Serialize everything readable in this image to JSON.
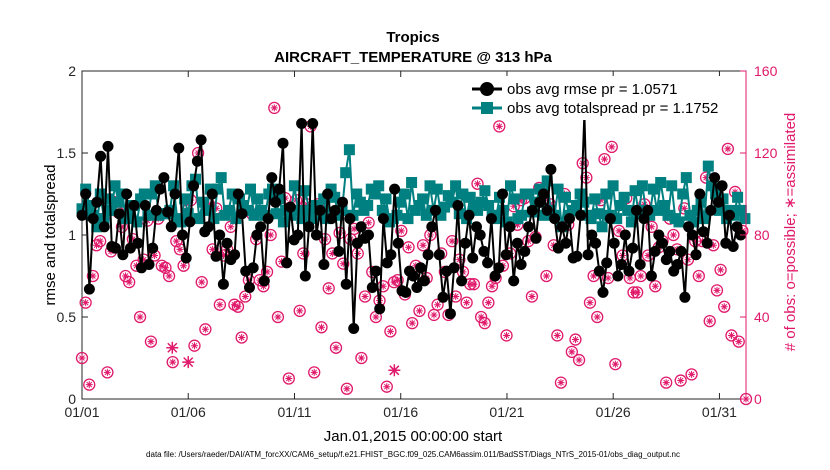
{
  "chart_data": {
    "type": "line",
    "title": "Tropics",
    "subtitle": "AIRCRAFT_TEMPERATURE @ 313 hPa",
    "xlabel": "Jan.01,2015 00:00:00 start",
    "ylabel_left": "rmse and totalspread",
    "ylabel_right": "# of obs: o=possible; ∗=assimilated",
    "x_range_days": [
      0,
      31.25
    ],
    "ylim_left": [
      0,
      2
    ],
    "ylim_right": [
      0,
      160
    ],
    "x_ticks": [
      {
        "day": 0,
        "label": "01/01"
      },
      {
        "day": 5,
        "label": "01/06"
      },
      {
        "day": 10,
        "label": "01/11"
      },
      {
        "day": 15,
        "label": "01/16"
      },
      {
        "day": 20,
        "label": "01/21"
      },
      {
        "day": 25,
        "label": "01/26"
      },
      {
        "day": 30,
        "label": "01/31"
      }
    ],
    "y_ticks_left": [
      {
        "value": 0,
        "label": "0"
      },
      {
        "value": 0.5,
        "label": "0.5"
      },
      {
        "value": 1,
        "label": "1"
      },
      {
        "value": 1.5,
        "label": "1.5"
      },
      {
        "value": 2,
        "label": "2"
      }
    ],
    "y_ticks_right": [
      {
        "value": 0,
        "label": "0"
      },
      {
        "value": 40,
        "label": "40"
      },
      {
        "value": 80,
        "label": "80"
      },
      {
        "value": 120,
        "label": "120"
      },
      {
        "value": 160,
        "label": "160"
      }
    ],
    "legend": {
      "location": "top-right",
      "entries": [
        "obs avg rmse pr = 1.0571",
        "obs avg totalspread pr = 1.1752"
      ]
    },
    "time_step_days": 0.125,
    "series": [
      {
        "name": "obs avg rmse pr = 1.0571",
        "axis": "left",
        "color": "#000000",
        "marker": "circle",
        "values": [
          1.12,
          1.25,
          0.67,
          1.1,
          1.2,
          1.48,
          1.05,
          1.54,
          0.93,
          0.92,
          1.13,
          0.88,
          1.25,
          0.92,
          1.18,
          0.95,
          0.8,
          1.18,
          0.82,
          0.92,
          1.15,
          1.28,
          1.35,
          1.14,
          1.05,
          1.25,
          1.53,
          1.0,
          0.86,
          1.08,
          1.3,
          1.45,
          1.58,
          1.02,
          1.05,
          1.25,
          0.87,
          1.0,
          0.7,
          0.95,
          0.85,
          0.88,
          1.25,
          1.13,
          0.78,
          0.68,
          0.8,
          1.0,
          1.05,
          0.72,
          1.1,
          1.35,
          1.2,
          1.28,
          1.56,
          0.83,
          1.17,
          0.97,
          1.0,
          1.68,
          0.75,
          1.05,
          1.68,
          1.0,
          1.15,
          0.82,
          1.25,
          1.1,
          1.15,
          0.9,
          1.2,
          0.7,
          1.1,
          0.43,
          0.95,
          1.05,
          0.98,
          1.0,
          0.68,
          0.78,
          0.55,
          1.1,
          0.83,
          0.88,
          1.28,
          0.95,
          0.66,
          0.65,
          0.78,
          0.75,
          0.68,
          0.8,
          0.72,
          0.88,
          1.05,
          1.15,
          0.88,
          0.62,
          0.78,
          0.52,
          0.8,
          1.18,
          0.72,
          0.95,
          1.12,
          0.86,
          1.05,
          1.0,
          0.9,
          0.83,
          1.1,
          0.75,
          0.8,
          1.25,
          0.88,
          1.05,
          0.72,
          0.95,
          0.82,
          0.9,
          1.05,
          1.15,
          0.98,
          1.2,
          1.25,
          1.15,
          1.4,
          1.1,
          0.92,
          1.05,
          0.95,
          1.1,
          0.86,
          0.87,
          1.12,
          1.74,
          0.88,
          1.0,
          0.95,
          0.78,
          0.65,
          0.83,
          1.1,
          0.95,
          0.75,
          0.82,
          1.0,
          0.78,
          0.92,
          1.15,
          0.82,
          1.1,
          1.15,
          0.75,
          0.9,
          1.0,
          0.95,
          0.85,
          0.9,
          0.78,
          0.82,
          0.9,
          0.62,
          1.05,
          1.0,
          0.88,
          1.25,
          1.02,
          0.95,
          1.15,
          1.35,
          1.2,
          1.3,
          0.95,
          1.12,
          0.93,
          1.05,
          1.0
        ],
        "end_day": 31.0
      },
      {
        "name": "obs avg totalspread pr = 1.1752",
        "axis": "left",
        "color": "#008080",
        "marker": "square",
        "values": [
          1.16,
          1.28,
          1.18,
          1.12,
          1.05,
          1.25,
          1.1,
          1.22,
          1.15,
          1.3,
          1.2,
          1.25,
          1.1,
          1.14,
          1.18,
          1.08,
          1.22,
          1.25,
          1.12,
          1.25,
          1.3,
          1.12,
          1.13,
          1.13,
          1.15,
          1.3,
          1.1,
          1.08,
          1.22,
          1.13,
          1.3,
          1.34,
          1.1,
          1.2,
          1.15,
          1.28,
          1.1,
          1.28,
          1.35,
          1.12,
          1.15,
          1.25,
          1.1,
          1.22,
          1.18,
          1.15,
          1.28,
          1.12,
          1.22,
          1.15,
          1.12,
          1.25,
          1.28,
          1.13,
          1.22,
          1.08,
          1.15,
          1.12,
          1.3,
          1.15,
          1.1,
          1.27,
          1.15,
          1.1,
          1.18,
          1.12,
          1.22,
          1.1,
          1.28,
          1.23,
          1.12,
          1.15,
          1.38,
          1.52,
          1.12,
          1.25,
          1.2,
          1.15,
          1.18,
          1.28,
          1.25,
          1.3,
          1.15,
          1.22,
          1.08,
          1.1,
          1.12,
          1.2,
          1.25,
          1.1,
          1.32,
          1.15,
          1.18,
          1.22,
          1.12,
          1.3,
          1.15,
          1.28,
          1.12,
          1.17,
          1.24,
          1.2,
          1.3,
          1.13,
          1.25,
          1.1,
          1.23,
          1.18,
          1.15,
          1.2,
          1.27,
          1.18,
          1.12,
          1.1,
          1.23,
          1.15,
          1.08,
          1.3,
          1.22,
          1.1,
          1.12,
          1.25,
          1.25,
          1.14,
          1.2,
          1.28,
          1.12,
          1.33,
          1.15,
          1.12,
          1.28,
          1.05,
          1.23,
          1.12,
          1.15,
          1.18,
          1.25,
          1.2,
          1.12,
          1.1,
          1.22,
          1.13,
          1.05,
          1.25,
          1.12,
          1.3,
          1.1,
          1.18,
          1.23,
          1.15,
          1.08,
          1.27,
          1.13,
          1.3,
          1.15,
          1.12,
          1.28,
          1.15,
          1.32,
          1.18,
          1.12,
          1.3,
          1.1,
          1.08,
          1.25,
          1.35,
          1.12,
          1.08,
          1.15,
          1.2,
          1.1,
          1.42,
          1.3,
          1.25,
          1.15,
          1.22,
          1.1,
          1.15,
          1.12,
          1.23,
          1.15,
          1.1
        ],
        "end_day": 31.2
      },
      {
        "name": "# of obs possible",
        "axis": "right",
        "color": "#e0196b",
        "marker": "circle-open",
        "values": [
          20,
          47,
          7,
          60,
          75,
          77,
          88,
          13,
          72,
          96,
          91,
          84,
          60,
          57,
          78,
          65,
          40,
          68,
          87,
          28,
          70,
          88,
          65,
          64,
          60,
          18,
          77,
          73,
          65,
          92,
          97,
          26,
          120,
          57,
          34,
          95,
          73,
          93,
          46,
          70,
          73,
          84,
          46,
          45,
          30,
          50,
          58,
          90,
          78,
          58,
          55,
          62,
          80,
          142,
          40,
          67,
          98,
          10,
          90,
          97,
          43,
          71,
          95,
          133,
          13,
          95,
          35,
          78,
          54,
          71,
          25,
          81,
          66,
          5,
          78,
          83,
          71,
          20,
          50,
          86,
          62,
          40,
          48,
          55,
          6,
          33,
          57,
          58,
          82,
          51,
          74,
          37,
          65,
          43,
          75,
          59,
          80,
          41,
          46,
          71,
          62,
          41,
          77,
          50,
          68,
          62,
          47,
          56,
          56,
          105,
          40,
          37,
          47,
          55,
          59,
          133,
          65,
          31,
          71,
          94,
          85,
          97,
          98,
          77,
          50,
          79,
          103,
          96,
          60,
          95,
          75,
          31,
          8,
          100,
          85,
          23,
          29,
          19,
          115,
          108,
          47,
          60,
          40,
          97,
          117,
          59,
          123,
          17,
          82,
          70,
          98,
          59,
          52,
          52,
          60,
          95,
          70,
          84,
          55,
          74,
          77,
          8,
          88,
          80,
          73,
          9,
          93,
          68,
          12,
          77,
          60,
          77,
          108,
          38,
          75,
          53,
          63,
          45,
          122,
          31,
          101,
          28,
          82,
          0
        ],
        "end_day": 31.25
      },
      {
        "name": "# of obs assimilated",
        "axis": "right",
        "color": "#e0196b",
        "marker": "asterisk",
        "points": [
          {
            "day": 4.25,
            "value": 25
          },
          {
            "day": 5.0,
            "value": 18
          },
          {
            "day": 14.7,
            "value": 14
          }
        ]
      }
    ]
  },
  "legend_text": {
    "rmse": "obs avg rmse pr = 1.0571",
    "spread": "obs avg totalspread pr = 1.1752"
  },
  "footer": "data file: /Users/raeder/DAI/ATM_forcXX/CAM6_setup/f.e21.FHIST_BGC.f09_025.CAM6assim.011/BadSST/Diags_NTrS_2015-01/obs_diag_output.nc"
}
